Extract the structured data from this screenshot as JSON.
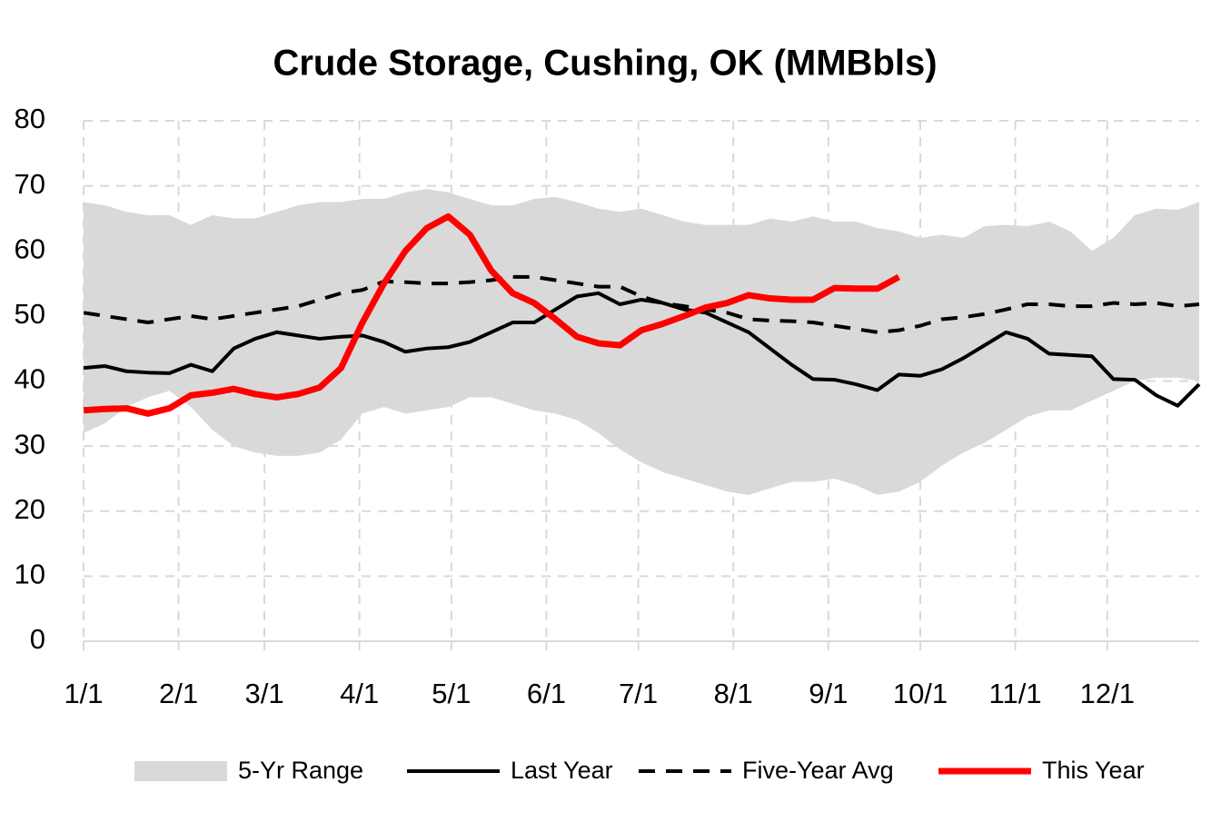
{
  "chart_data": {
    "type": "line",
    "title": "Crude Storage, Cushing, OK (MMBbls)",
    "x": [
      0,
      7,
      14,
      21,
      28,
      35,
      42,
      49,
      56,
      63,
      70,
      77,
      84,
      91,
      98,
      105,
      112,
      119,
      126,
      133,
      140,
      147,
      154,
      161,
      168,
      175,
      182,
      189,
      196,
      203,
      210,
      217,
      224,
      231,
      238,
      245,
      252,
      259,
      266,
      273,
      280,
      287,
      294,
      301,
      308,
      315,
      322,
      329,
      336,
      343,
      350,
      357,
      364
    ],
    "xlim": [
      0,
      364
    ],
    "xticks": [
      {
        "value": 0,
        "label": "1/1"
      },
      {
        "value": 31,
        "label": "2/1"
      },
      {
        "value": 59,
        "label": "3/1"
      },
      {
        "value": 90,
        "label": "4/1"
      },
      {
        "value": 120,
        "label": "5/1"
      },
      {
        "value": 151,
        "label": "6/1"
      },
      {
        "value": 181,
        "label": "7/1"
      },
      {
        "value": 212,
        "label": "8/1"
      },
      {
        "value": 243,
        "label": "9/1"
      },
      {
        "value": 273,
        "label": "10/1"
      },
      {
        "value": 304,
        "label": "11/1"
      },
      {
        "value": 334,
        "label": "12/1"
      }
    ],
    "ylim": [
      0,
      80
    ],
    "yticks": [
      0,
      10,
      20,
      30,
      40,
      50,
      60,
      70,
      80
    ],
    "grid": true,
    "legend": "bottom",
    "series": [
      {
        "name": "5-Yr Range",
        "kind": "range",
        "color": "#d9d9d9",
        "high": [
          67.5,
          67,
          66,
          65.5,
          65.5,
          64,
          65.5,
          65,
          65,
          66,
          67,
          67.5,
          67.5,
          68,
          68,
          69,
          69.5,
          69,
          68,
          67,
          67,
          68,
          68.3,
          67.5,
          66.5,
          66,
          66.5,
          65.5,
          64.5,
          64,
          64,
          64,
          65,
          64.5,
          65.3,
          64.5,
          64.5,
          63.5,
          63,
          62,
          62.5,
          62,
          63.8,
          64,
          63.8,
          64.5,
          63,
          60,
          62,
          65.5,
          66.5,
          66.3,
          67.5
        ],
        "low": [
          32,
          33.5,
          36,
          37.5,
          38.5,
          36,
          32.5,
          30,
          29,
          28.5,
          28.5,
          29,
          31,
          35,
          36,
          35,
          35.5,
          36,
          37.5,
          37.5,
          36.5,
          35.5,
          35,
          34,
          32,
          29.5,
          27.5,
          26,
          25,
          24,
          23,
          22.5,
          23.5,
          24.5,
          24.5,
          25,
          24,
          22.5,
          23,
          24.5,
          27,
          29,
          30.5,
          32.5,
          34.5,
          35.5,
          35.5,
          37,
          38.5,
          40,
          40.5,
          40.5,
          40
        ]
      },
      {
        "name": "Last Year",
        "color": "#000000",
        "line_width": 4,
        "dashed": false,
        "values": [
          42,
          42.3,
          41.5,
          41.3,
          41.2,
          42.5,
          41.5,
          45,
          46.5,
          47.5,
          47,
          46.5,
          46.8,
          47,
          46,
          44.5,
          45,
          45.2,
          46,
          47.5,
          49,
          49,
          51,
          53,
          53.5,
          51.8,
          52.5,
          52,
          51,
          50.5,
          49,
          47.5,
          45,
          42.5,
          40.3,
          40.2,
          39.5,
          38.6,
          41,
          40.8,
          41.8,
          43.5,
          45.5,
          47.5,
          46.5,
          44.2,
          44,
          43.8,
          40.3,
          40.2,
          37.8,
          36.2,
          39.5
        ]
      },
      {
        "name": "Five-Year Avg",
        "color": "#000000",
        "line_width": 4,
        "dashed": true,
        "values": [
          50.5,
          50,
          49.5,
          49,
          49.5,
          50,
          49.5,
          50,
          50.5,
          51,
          51.5,
          52.5,
          53.5,
          54,
          55.3,
          55.2,
          55,
          55,
          55.2,
          55.5,
          56,
          56,
          55.5,
          55,
          54.5,
          54.5,
          53,
          52,
          51.5,
          51,
          50.5,
          49.5,
          49.3,
          49.2,
          49,
          48.5,
          48,
          47.5,
          47.8,
          48.5,
          49.5,
          49.8,
          50.3,
          51,
          51.8,
          51.8,
          51.5,
          51.5,
          52,
          51.8,
          52,
          51.5,
          51.8
        ]
      },
      {
        "name": "This Year",
        "color": "#ff0000",
        "line_width": 7,
        "dashed": false,
        "values": [
          35.5,
          35.7,
          35.8,
          35,
          35.8,
          37.8,
          38.2,
          38.8,
          38,
          37.5,
          38,
          39,
          42,
          49,
          55,
          60,
          63.5,
          65.3,
          62.5,
          57,
          53.5,
          52,
          49.5,
          46.8,
          45.8,
          45.5,
          47.8,
          48.8,
          50,
          51.3,
          52,
          53.2,
          52.7,
          52.5,
          52.5,
          54.3,
          54.2,
          54.2,
          56,
          null,
          null,
          null,
          null,
          null,
          null,
          null,
          null,
          null,
          null,
          null,
          null,
          null,
          null
        ]
      }
    ]
  }
}
